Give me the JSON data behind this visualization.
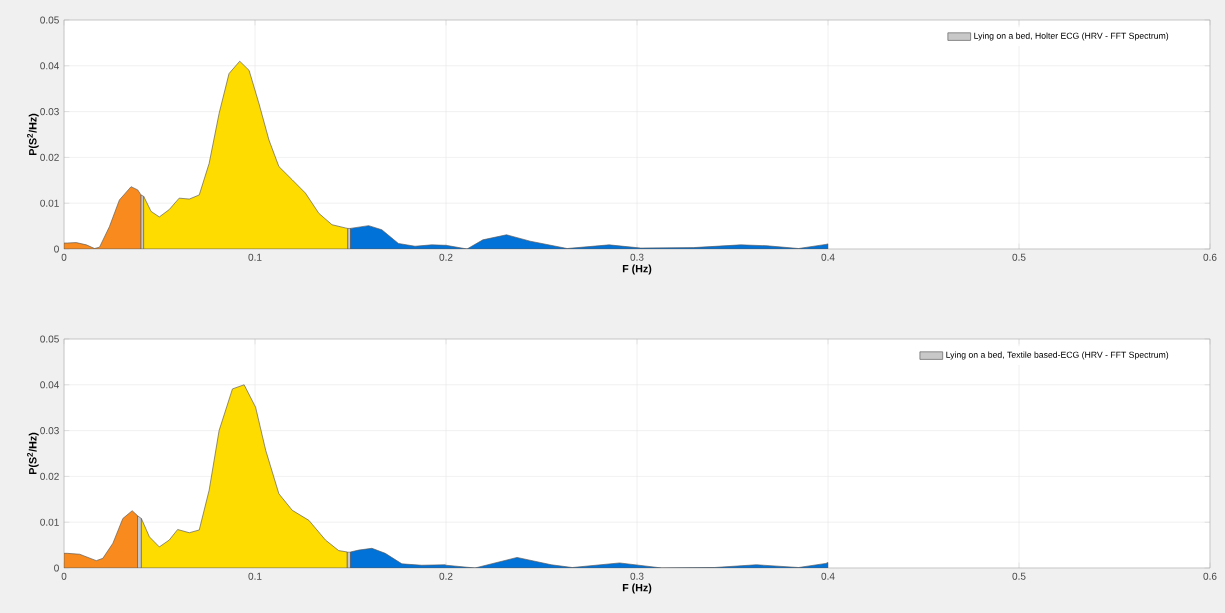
{
  "chart_data": [
    {
      "type": "area",
      "xlabel": "F (Hz)",
      "ylabel": "P(S$^{2}$/Hz)",
      "xlim": [
        0,
        0.6
      ],
      "ylim": [
        0,
        0.05
      ],
      "xticks": [
        0,
        0.1,
        0.2,
        0.3,
        0.4,
        0.5,
        0.6
      ],
      "yticks": [
        0,
        0.01,
        0.02,
        0.03,
        0.04,
        0.05
      ],
      "grid": true,
      "legend": "top right",
      "series": [
        {
          "color": "#f98b1e",
          "x": [
            0,
            0.0017,
            0.0064,
            0.0117,
            0.016,
            0.0186,
            0.0238,
            0.029,
            0.0351,
            0.0386,
            0.0403
          ],
          "values": [
            0.0013,
            0.0013,
            0.0014,
            0.0009,
            0.0001,
            0.0004,
            0.0049,
            0.0107,
            0.0136,
            0.0129,
            0.0118
          ]
        },
        {
          "name": "Lying on a bed, Holter ECG (HRV - FFT Spectrum)",
          "color": "#c8c8c8",
          "x": [
            0.0403,
            0.0417,
            0.1,
            0.1485,
            0.15
          ],
          "values": [
            0.0118,
            0.0115,
            null,
            0.0045,
            0.0045
          ]
        },
        {
          "color": "#ffdc00",
          "x": [
            0.0417,
            0.0456,
            0.0499,
            0.0551,
            0.0603,
            0.0656,
            0.0708,
            0.076,
            0.0812,
            0.0864,
            0.092,
            0.0969,
            0.1021,
            0.1073,
            0.1125,
            0.1195,
            0.1264,
            0.1334,
            0.1403,
            0.1473,
            0.1485
          ],
          "values": [
            0.0115,
            0.0082,
            0.007,
            0.0086,
            0.0111,
            0.0109,
            0.0118,
            0.0187,
            0.0296,
            0.0383,
            0.041,
            0.039,
            0.0317,
            0.0238,
            0.018,
            0.0151,
            0.0122,
            0.0078,
            0.0053,
            0.0046,
            0.0045
          ]
        },
        {
          "color": "#0072d8",
          "x": [
            0.15,
            0.1595,
            0.1664,
            0.1751,
            0.1838,
            0.1925,
            0.2,
            0.211,
            0.2193,
            0.2317,
            0.2441,
            0.2634,
            0.2854,
            0.302,
            0.3295,
            0.3543,
            0.3681,
            0.3846,
            0.3989,
            0.4
          ],
          "values": [
            0.0045,
            0.0051,
            0.0042,
            0.0012,
            0.0006,
            0.0009,
            0.0008,
            0,
            0.002,
            0.0031,
            0.0017,
            0.0001,
            0.0009,
            0.0002,
            0.0003,
            0.0009,
            0.0007,
            0.0001,
            0.001,
            0.0011
          ]
        }
      ]
    },
    {
      "type": "area",
      "xlabel": "F (Hz)",
      "ylabel": "P(S$^{2}$/Hz)",
      "xlim": [
        0,
        0.6
      ],
      "ylim": [
        0,
        0.05
      ],
      "xticks": [
        0,
        0.1,
        0.2,
        0.3,
        0.4,
        0.5,
        0.6
      ],
      "yticks": [
        0,
        0.01,
        0.02,
        0.03,
        0.04,
        0.05
      ],
      "grid": true,
      "legend": "top right",
      "series": [
        {
          "color": "#f98b1e",
          "x": [
            0,
            0.0017,
            0.0082,
            0.0169,
            0.0203,
            0.0256,
            0.0308,
            0.0357,
            0.0383,
            0.0385
          ],
          "values": [
            0.0032,
            0.0032,
            0.003,
            0.0016,
            0.0021,
            0.0054,
            0.0108,
            0.0125,
            0.0115,
            0.0114
          ]
        },
        {
          "name": "Lying on a bed, Textile based-ECG (HRV - FFT Spectrum)",
          "color": "#c8c8c8",
          "x": [
            0.0385,
            0.0405,
            0.1,
            0.1482,
            0.15
          ],
          "values": [
            0.0114,
            0.0108,
            null,
            0.0035,
            0.0035
          ]
        },
        {
          "color": "#ffdc00",
          "x": [
            0.0405,
            0.0447,
            0.0499,
            0.0551,
            0.0595,
            0.0656,
            0.0708,
            0.076,
            0.0812,
            0.0882,
            0.0943,
            0.1003,
            0.1056,
            0.1125,
            0.1195,
            0.1282,
            0.1369,
            0.1438,
            0.1482
          ],
          "values": [
            0.0108,
            0.0068,
            0.0046,
            0.0061,
            0.0084,
            0.0077,
            0.0083,
            0.017,
            0.03,
            0.0391,
            0.04,
            0.0351,
            0.0257,
            0.0162,
            0.0126,
            0.0104,
            0.0061,
            0.0038,
            0.0035
          ]
        },
        {
          "color": "#0072d8",
          "x": [
            0.15,
            0.1543,
            0.1612,
            0.1682,
            0.1769,
            0.1873,
            0.1995,
            0.2,
            0.2152,
            0.2372,
            0.2551,
            0.2661,
            0.2909,
            0.313,
            0.3405,
            0.3625,
            0.3846,
            0.3989,
            0.4
          ],
          "values": [
            0.0035,
            0.0039,
            0.0043,
            0.0032,
            0.0009,
            0.0006,
            0.0007,
            0.0006,
            0,
            0.0023,
            0.0007,
            0.0001,
            0.0011,
            0,
            0.0001,
            0.0007,
            0.0001,
            0.001,
            0.0012
          ]
        }
      ]
    }
  ]
}
